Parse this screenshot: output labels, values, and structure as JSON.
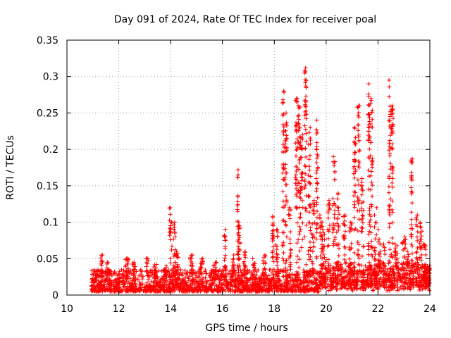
{
  "chart_data": {
    "type": "scatter",
    "title": "Day 091 of 2024, Rate Of TEC Index for receiver poal",
    "xlabel": "GPS time / hours",
    "ylabel": "ROTI / TECUs",
    "xlim": [
      10,
      24
    ],
    "ylim": [
      0,
      0.35
    ],
    "xticks": [
      10,
      12,
      14,
      16,
      18,
      20,
      22,
      24
    ],
    "xtick_labels": [
      "10",
      "12",
      "14",
      "16",
      "18",
      "20",
      "22",
      "24"
    ],
    "yticks": [
      0,
      0.05,
      0.1,
      0.15,
      0.2,
      0.25,
      0.3,
      0.35
    ],
    "ytick_labels": [
      "0",
      "0.05",
      "0.1",
      "0.15",
      "0.2",
      "0.25",
      "0.3",
      "0.35"
    ],
    "grid": true,
    "marker": "+",
    "color": "#ff0000",
    "x_start": 10.95,
    "x_end": 24.0,
    "baseline": {
      "low": 0.005,
      "high": 0.035
    },
    "bursts": [
      [
        11.35,
        0.055,
        0.1
      ],
      [
        11.6,
        0.045,
        0.12
      ],
      [
        12.3,
        0.05,
        0.15
      ],
      [
        12.6,
        0.045,
        0.15
      ],
      [
        13.1,
        0.05,
        0.1
      ],
      [
        13.4,
        0.042,
        0.12
      ],
      [
        13.8,
        0.04,
        0.1
      ],
      [
        14.0,
        0.12,
        0.1
      ],
      [
        14.15,
        0.1,
        0.08
      ],
      [
        14.25,
        0.06,
        0.08
      ],
      [
        14.8,
        0.055,
        0.12
      ],
      [
        15.2,
        0.05,
        0.12
      ],
      [
        15.7,
        0.045,
        0.15
      ],
      [
        16.1,
        0.09,
        0.06
      ],
      [
        16.4,
        0.055,
        0.1
      ],
      [
        16.6,
        0.172,
        0.06
      ],
      [
        16.65,
        0.1,
        0.06
      ],
      [
        16.85,
        0.06,
        0.08
      ],
      [
        17.2,
        0.05,
        0.12
      ],
      [
        17.6,
        0.055,
        0.12
      ],
      [
        17.95,
        0.108,
        0.06
      ],
      [
        18.1,
        0.09,
        0.08
      ],
      [
        18.35,
        0.28,
        0.06
      ],
      [
        18.45,
        0.25,
        0.08
      ],
      [
        18.6,
        0.12,
        0.1
      ],
      [
        18.85,
        0.27,
        0.08
      ],
      [
        18.95,
        0.26,
        0.08
      ],
      [
        19.05,
        0.22,
        0.1
      ],
      [
        19.2,
        0.312,
        0.07
      ],
      [
        19.35,
        0.23,
        0.1
      ],
      [
        19.5,
        0.13,
        0.12
      ],
      [
        19.65,
        0.24,
        0.06
      ],
      [
        19.8,
        0.11,
        0.1
      ],
      [
        19.9,
        0.09,
        0.12
      ],
      [
        20.1,
        0.13,
        0.1
      ],
      [
        20.3,
        0.19,
        0.1
      ],
      [
        20.45,
        0.14,
        0.1
      ],
      [
        20.7,
        0.11,
        0.1
      ],
      [
        20.95,
        0.1,
        0.1
      ],
      [
        21.1,
        0.23,
        0.08
      ],
      [
        21.25,
        0.26,
        0.08
      ],
      [
        21.4,
        0.16,
        0.1
      ],
      [
        21.65,
        0.29,
        0.06
      ],
      [
        21.75,
        0.27,
        0.08
      ],
      [
        21.9,
        0.12,
        0.1
      ],
      [
        22.05,
        0.09,
        0.1
      ],
      [
        22.25,
        0.07,
        0.12
      ],
      [
        22.45,
        0.295,
        0.06
      ],
      [
        22.55,
        0.26,
        0.08
      ],
      [
        22.7,
        0.07,
        0.12
      ],
      [
        23.0,
        0.08,
        0.12
      ],
      [
        23.15,
        0.06,
        0.12
      ],
      [
        23.3,
        0.187,
        0.06
      ],
      [
        23.5,
        0.11,
        0.08
      ],
      [
        23.65,
        0.1,
        0.1
      ],
      [
        23.8,
        0.07,
        0.1
      ],
      [
        23.95,
        0.04,
        0.08
      ]
    ]
  }
}
